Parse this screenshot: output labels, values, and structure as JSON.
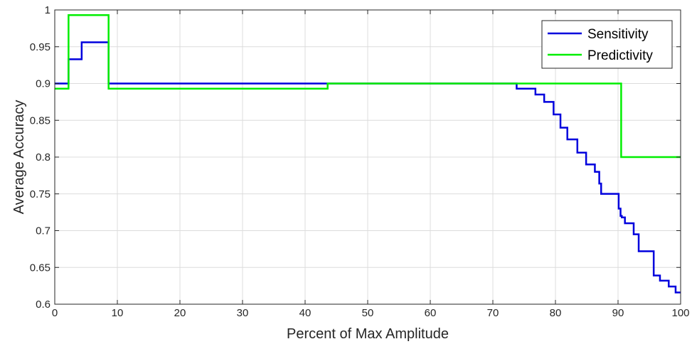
{
  "chart_data": {
    "type": "line",
    "title": "",
    "xlabel": "Percent of Max Amplitude",
    "ylabel": "Average Accuracy",
    "xlim": [
      0,
      100
    ],
    "ylim": [
      0.6,
      1
    ],
    "xticks": [
      0,
      10,
      20,
      30,
      40,
      50,
      60,
      70,
      80,
      90,
      100
    ],
    "yticks": [
      0.6,
      0.65,
      0.7,
      0.75,
      0.8,
      0.85,
      0.9,
      0.95,
      1
    ],
    "xtick_labels": [
      "0",
      "10",
      "20",
      "30",
      "40",
      "50",
      "60",
      "70",
      "80",
      "90",
      "100"
    ],
    "ytick_labels": [
      "0.6",
      "0.65",
      "0.7",
      "0.75",
      "0.8",
      "0.85",
      "0.9",
      "0.95",
      "1"
    ],
    "grid": true,
    "legend_position": "top-right",
    "series": [
      {
        "name": "Sensitivity",
        "color": "#0000dd",
        "step": true,
        "x": [
          0,
          2.2,
          4.3,
          8.6,
          73.8,
          76.8,
          78.2,
          79.7,
          80.8,
          81.9,
          83.5,
          84.9,
          86.3,
          87.0,
          87.3,
          90.1,
          90.4,
          90.6,
          91.1,
          92.5,
          93.3,
          95.7,
          96.7,
          98.1,
          99.2,
          100
        ],
        "y": [
          0.9,
          0.933,
          0.956,
          0.9,
          0.893,
          0.885,
          0.875,
          0.858,
          0.84,
          0.824,
          0.806,
          0.79,
          0.78,
          0.764,
          0.75,
          0.73,
          0.72,
          0.718,
          0.71,
          0.695,
          0.672,
          0.639,
          0.632,
          0.624,
          0.616,
          0.616
        ]
      },
      {
        "name": "Predictivity",
        "color": "#00ee00",
        "step": true,
        "x": [
          0,
          2.2,
          8.6,
          43.6,
          90.5,
          100
        ],
        "y": [
          0.893,
          0.993,
          0.893,
          0.9,
          0.8,
          0.8
        ]
      }
    ]
  }
}
